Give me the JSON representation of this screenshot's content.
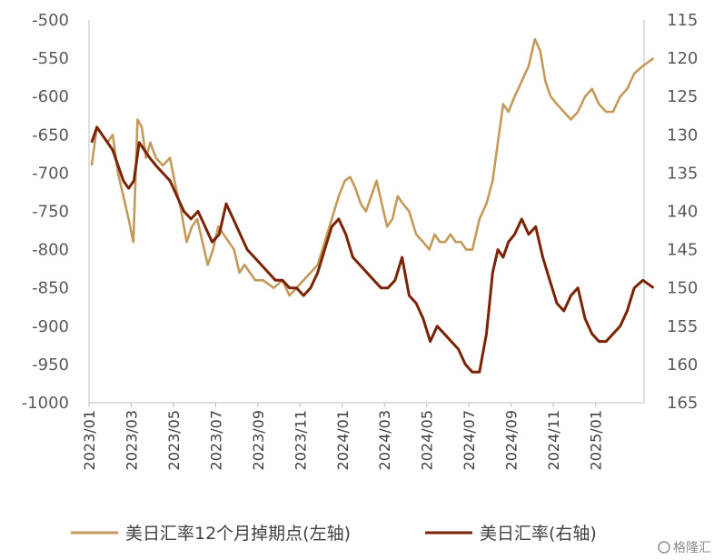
{
  "chart_data": {
    "type": "line",
    "left_axis": {
      "ylim": [
        -1000,
        -500
      ],
      "ticks": [
        "-500",
        "-550",
        "-600",
        "-650",
        "-700",
        "-750",
        "-800",
        "-850",
        "-900",
        "-950",
        "-1000"
      ]
    },
    "right_axis": {
      "ylim": [
        115,
        165
      ],
      "inverted": true,
      "ticks": [
        "115",
        "120",
        "125",
        "130",
        "135",
        "140",
        "145",
        "150",
        "155",
        "160",
        "165"
      ]
    },
    "x_ticks": [
      "2023/01",
      "2023/03",
      "2023/05",
      "2023/07",
      "2023/09",
      "2023/11",
      "2024/01",
      "2024/03",
      "2024/05",
      "2024/07",
      "2024/09",
      "2024/11",
      "2025/01"
    ],
    "grid": false,
    "legend_position": "bottom",
    "series": [
      {
        "name": "美日汇率12个月掉期点(左轴)",
        "axis": "left",
        "color": "#C49A5A",
        "points": [
          [
            "2023/01",
            -690
          ],
          [
            "2023/01",
            -640
          ],
          [
            "2023/01",
            -650
          ],
          [
            "2023/01",
            -660
          ],
          [
            "2023/02",
            -650
          ],
          [
            "2023/02",
            -700
          ],
          [
            "2023/02",
            -730
          ],
          [
            "2023/02",
            -760
          ],
          [
            "2023/03",
            -790
          ],
          [
            "2023/03",
            -630
          ],
          [
            "2023/03",
            -640
          ],
          [
            "2023/03",
            -680
          ],
          [
            "2023/03",
            -660
          ],
          [
            "2023/04",
            -680
          ],
          [
            "2023/04",
            -690
          ],
          [
            "2023/04",
            -680
          ],
          [
            "2023/05",
            -720
          ],
          [
            "2023/05",
            -750
          ],
          [
            "2023/05",
            -790
          ],
          [
            "2023/05",
            -770
          ],
          [
            "2023/06",
            -760
          ],
          [
            "2023/06",
            -790
          ],
          [
            "2023/06",
            -820
          ],
          [
            "2023/06",
            -800
          ],
          [
            "2023/07",
            -770
          ],
          [
            "2023/07",
            -780
          ],
          [
            "2023/07",
            -790
          ],
          [
            "2023/07",
            -800
          ],
          [
            "2023/08",
            -830
          ],
          [
            "2023/08",
            -820
          ],
          [
            "2023/08",
            -830
          ],
          [
            "2023/08",
            -840
          ],
          [
            "2023/09",
            -840
          ],
          [
            "2023/09",
            -850
          ],
          [
            "2023/10",
            -840
          ],
          [
            "2023/10",
            -860
          ],
          [
            "2023/10",
            -850
          ],
          [
            "2023/11",
            -840
          ],
          [
            "2023/11",
            -830
          ],
          [
            "2023/11",
            -820
          ],
          [
            "2023/12",
            -790
          ],
          [
            "2023/12",
            -760
          ],
          [
            "2023/12",
            -730
          ],
          [
            "2024/01",
            -710
          ],
          [
            "2024/01",
            -705
          ],
          [
            "2024/01",
            -720
          ],
          [
            "2024/01",
            -740
          ],
          [
            "2024/02",
            -750
          ],
          [
            "2024/02",
            -730
          ],
          [
            "2024/02",
            -710
          ],
          [
            "2024/02",
            -740
          ],
          [
            "2024/03",
            -770
          ],
          [
            "2024/03",
            -760
          ],
          [
            "2024/03",
            -730
          ],
          [
            "2024/03",
            -740
          ],
          [
            "2024/04",
            -750
          ],
          [
            "2024/04",
            -780
          ],
          [
            "2024/04",
            -790
          ],
          [
            "2024/05",
            -800
          ],
          [
            "2024/05",
            -780
          ],
          [
            "2024/05",
            -790
          ],
          [
            "2024/05",
            -790
          ],
          [
            "2024/06",
            -780
          ],
          [
            "2024/06",
            -790
          ],
          [
            "2024/06",
            -790
          ],
          [
            "2024/06",
            -800
          ],
          [
            "2024/07",
            -800
          ],
          [
            "2024/07",
            -760
          ],
          [
            "2024/07",
            -740
          ],
          [
            "2024/08",
            -710
          ],
          [
            "2024/08",
            -660
          ],
          [
            "2024/08",
            -610
          ],
          [
            "2024/08",
            -620
          ],
          [
            "2024/09",
            -600
          ],
          [
            "2024/09",
            -580
          ],
          [
            "2024/09",
            -560
          ],
          [
            "2024/10",
            -525
          ],
          [
            "2024/10",
            -540
          ],
          [
            "2024/10",
            -580
          ],
          [
            "2024/10",
            -600
          ],
          [
            "2024/11",
            -610
          ],
          [
            "2024/11",
            -620
          ],
          [
            "2024/11",
            -630
          ],
          [
            "2024/12",
            -620
          ],
          [
            "2024/12",
            -600
          ],
          [
            "2024/12",
            -590
          ],
          [
            "2025/01",
            -610
          ],
          [
            "2025/01",
            -620
          ],
          [
            "2025/01",
            -620
          ],
          [
            "2025/02",
            -600
          ],
          [
            "2025/02",
            -590
          ],
          [
            "2025/02",
            -570
          ],
          [
            "2025/03",
            -560
          ],
          [
            "2025/03",
            -550
          ]
        ]
      },
      {
        "name": "美日汇率(右轴)",
        "axis": "right",
        "color": "#7B2306",
        "points": [
          [
            "2023/01",
            131
          ],
          [
            "2023/01",
            129
          ],
          [
            "2023/01",
            130
          ],
          [
            "2023/01",
            131
          ],
          [
            "2023/02",
            132
          ],
          [
            "2023/02",
            134
          ],
          [
            "2023/02",
            136
          ],
          [
            "2023/02",
            137
          ],
          [
            "2023/03",
            136
          ],
          [
            "2023/03",
            131
          ],
          [
            "2023/03",
            132
          ],
          [
            "2023/03",
            133
          ],
          [
            "2023/04",
            134
          ],
          [
            "2023/04",
            135
          ],
          [
            "2023/04",
            136
          ],
          [
            "2023/05",
            138
          ],
          [
            "2023/05",
            140
          ],
          [
            "2023/05",
            141
          ],
          [
            "2023/06",
            140
          ],
          [
            "2023/06",
            142
          ],
          [
            "2023/06",
            144
          ],
          [
            "2023/07",
            143
          ],
          [
            "2023/07",
            139
          ],
          [
            "2023/07",
            141
          ],
          [
            "2023/08",
            143
          ],
          [
            "2023/08",
            145
          ],
          [
            "2023/08",
            146
          ],
          [
            "2023/09",
            147
          ],
          [
            "2023/09",
            148
          ],
          [
            "2023/09",
            149
          ],
          [
            "2023/10",
            149
          ],
          [
            "2023/10",
            150
          ],
          [
            "2023/10",
            150
          ],
          [
            "2023/11",
            151
          ],
          [
            "2023/11",
            150
          ],
          [
            "2023/11",
            148
          ],
          [
            "2023/12",
            145
          ],
          [
            "2023/12",
            142
          ],
          [
            "2023/12",
            141
          ],
          [
            "2024/01",
            143
          ],
          [
            "2024/01",
            146
          ],
          [
            "2024/01",
            147
          ],
          [
            "2024/02",
            148
          ],
          [
            "2024/02",
            149
          ],
          [
            "2024/02",
            150
          ],
          [
            "2024/03",
            150
          ],
          [
            "2024/03",
            149
          ],
          [
            "2024/03",
            146
          ],
          [
            "2024/04",
            151
          ],
          [
            "2024/04",
            152
          ],
          [
            "2024/04",
            154
          ],
          [
            "2024/05",
            157
          ],
          [
            "2024/05",
            155
          ],
          [
            "2024/05",
            156
          ],
          [
            "2024/06",
            157
          ],
          [
            "2024/06",
            158
          ],
          [
            "2024/06",
            160
          ],
          [
            "2024/07",
            161
          ],
          [
            "2024/07",
            161
          ],
          [
            "2024/07",
            156
          ],
          [
            "2024/08",
            148
          ],
          [
            "2024/08",
            145
          ],
          [
            "2024/08",
            146
          ],
          [
            "2024/08",
            144
          ],
          [
            "2024/09",
            143
          ],
          [
            "2024/09",
            141
          ],
          [
            "2024/09",
            143
          ],
          [
            "2024/10",
            142
          ],
          [
            "2024/10",
            146
          ],
          [
            "2024/10",
            149
          ],
          [
            "2024/11",
            152
          ],
          [
            "2024/11",
            153
          ],
          [
            "2024/11",
            151
          ],
          [
            "2024/12",
            150
          ],
          [
            "2024/12",
            154
          ],
          [
            "2024/12",
            156
          ],
          [
            "2025/01",
            157
          ],
          [
            "2025/01",
            157
          ],
          [
            "2025/01",
            156
          ],
          [
            "2025/02",
            155
          ],
          [
            "2025/02",
            153
          ],
          [
            "2025/02",
            150
          ],
          [
            "2025/03",
            149
          ],
          [
            "2025/03",
            150
          ]
        ]
      }
    ]
  },
  "legend": {
    "items": [
      {
        "label": "美日汇率12个月掉期点(左轴)",
        "color": "#C49A5A"
      },
      {
        "label": "美日汇率(右轴)",
        "color": "#7B2306"
      }
    ]
  },
  "watermark": {
    "text": "格隆汇"
  }
}
